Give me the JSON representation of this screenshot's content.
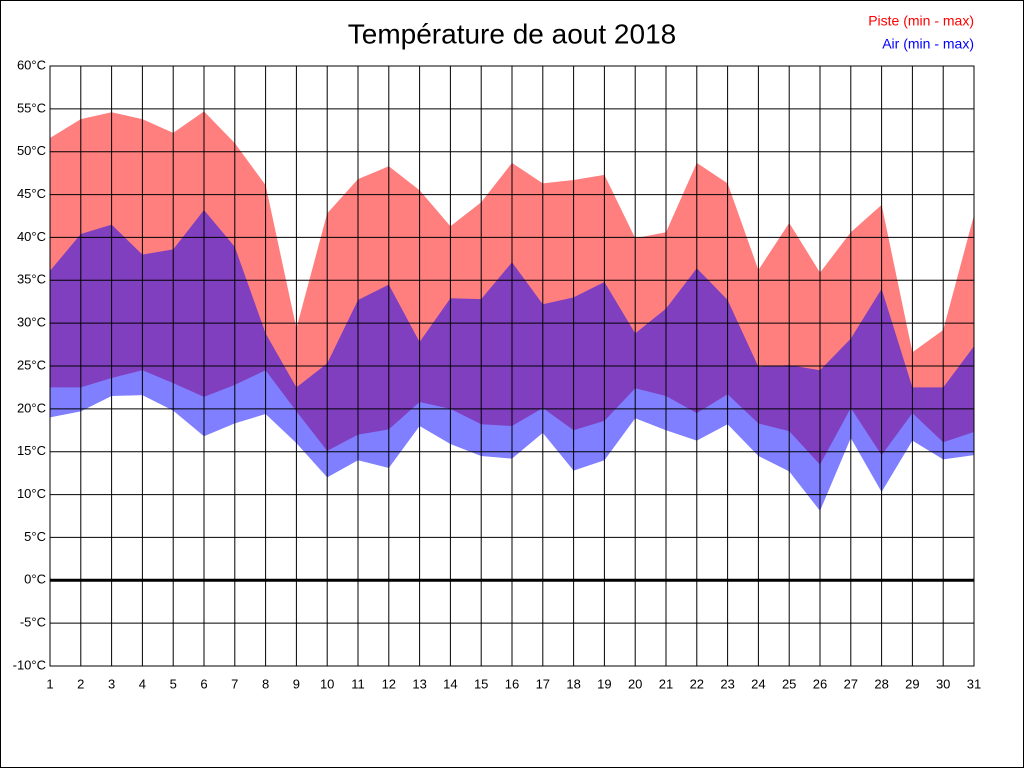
{
  "chart_data": {
    "type": "range_area",
    "title": "Température de aout 2018",
    "x": [
      1,
      2,
      3,
      4,
      5,
      6,
      7,
      8,
      9,
      10,
      11,
      12,
      13,
      14,
      15,
      16,
      17,
      18,
      19,
      20,
      21,
      22,
      23,
      24,
      25,
      26,
      27,
      28,
      29,
      30,
      31
    ],
    "xlim": [
      1,
      31
    ],
    "xticks": [
      1,
      2,
      3,
      4,
      5,
      6,
      7,
      8,
      9,
      10,
      11,
      12,
      13,
      14,
      15,
      16,
      17,
      18,
      19,
      20,
      21,
      22,
      23,
      24,
      25,
      26,
      27,
      28,
      29,
      30,
      31
    ],
    "ylim": [
      -10,
      60
    ],
    "yticks": [
      {
        "value": -10,
        "label": "-10°C"
      },
      {
        "value": -5,
        "label": "-5°C"
      },
      {
        "value": 0,
        "label": "0°C"
      },
      {
        "value": 5,
        "label": "5°C"
      },
      {
        "value": 10,
        "label": "10°C"
      },
      {
        "value": 15,
        "label": "15°C"
      },
      {
        "value": 20,
        "label": "20°C"
      },
      {
        "value": 25,
        "label": "25°C"
      },
      {
        "value": 30,
        "label": "30°C"
      },
      {
        "value": 35,
        "label": "35°C"
      },
      {
        "value": 40,
        "label": "40°C"
      },
      {
        "value": 45,
        "label": "45°C"
      },
      {
        "value": 50,
        "label": "50°C"
      },
      {
        "value": 55,
        "label": "55°C"
      },
      {
        "value": 60,
        "label": "60°C"
      }
    ],
    "grid": true,
    "legend": "top-right",
    "series": [
      {
        "name": "Piste (min - max)",
        "color": "#ff0000",
        "low": [
          22.5,
          22.5,
          23.6,
          24.5,
          23.0,
          21.4,
          22.8,
          24.5,
          19.7,
          15.1,
          17.0,
          17.6,
          20.8,
          20.0,
          18.2,
          18.0,
          20.1,
          17.5,
          18.6,
          22.4,
          21.5,
          19.5,
          21.7,
          18.3,
          17.4,
          13.5,
          20.1,
          14.6,
          19.5,
          16.1,
          17.3
        ],
        "high": [
          51.6,
          53.8,
          54.6,
          53.8,
          52.2,
          54.7,
          51.0,
          46.1,
          29.4,
          42.8,
          46.8,
          48.3,
          45.5,
          41.3,
          44.1,
          48.7,
          46.3,
          46.7,
          47.3,
          39.9,
          40.6,
          48.7,
          46.3,
          36.2,
          41.7,
          35.9,
          40.6,
          43.8,
          26.6,
          29.2,
          42.6
        ]
      },
      {
        "name": "Air (min - max)",
        "color": "#0000ff",
        "low": [
          19.0,
          19.7,
          21.5,
          21.6,
          19.8,
          16.8,
          18.3,
          19.4,
          16.0,
          12.0,
          14.0,
          13.1,
          18.0,
          15.9,
          14.5,
          14.2,
          17.2,
          12.8,
          14.0,
          18.9,
          17.5,
          16.3,
          18.2,
          14.5,
          12.7,
          8.1,
          16.6,
          10.3,
          16.3,
          14.1,
          14.6
        ],
        "high": [
          36.1,
          40.4,
          41.5,
          38.0,
          38.6,
          43.2,
          38.9,
          28.8,
          22.5,
          25.3,
          32.7,
          34.5,
          27.8,
          32.9,
          32.8,
          37.1,
          32.2,
          33.0,
          34.8,
          28.8,
          31.7,
          36.4,
          32.7,
          24.9,
          25.1,
          24.5,
          28.2,
          34.0,
          22.5,
          22.5,
          27.3
        ]
      }
    ]
  }
}
